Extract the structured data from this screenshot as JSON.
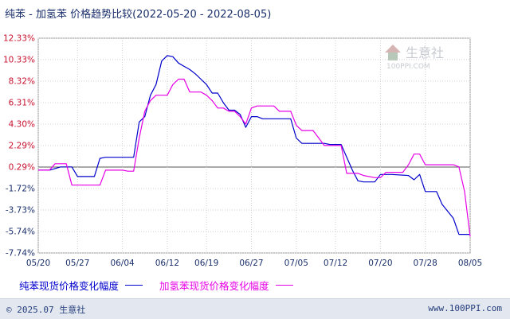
{
  "title": {
    "main": "纯苯 - 加氢苯 价格趋势比较",
    "range": "(2022-05-20 - 2022-08-05)"
  },
  "watermark": {
    "cn": "生意社",
    "en": "100PPI.COM"
  },
  "footer": {
    "copyright": "© 2025.07 生意社",
    "url": "www.100PPI.com"
  },
  "colors": {
    "series_0": "#0000cc",
    "series_1": "#e600e6",
    "axis_pos": "#c8102e",
    "axis_neg": "#1a2f6b",
    "grid": "#d0d0d0"
  },
  "chart_data": {
    "type": "line",
    "ylim": [
      -7.74,
      12.33
    ],
    "y_ticks": [
      "12.33%",
      "10.33%",
      "8.32%",
      "6.31%",
      "4.30%",
      "2.29%",
      "0.29%",
      "-1.72%",
      "-3.73%",
      "-5.74%",
      "-7.74%"
    ],
    "y_tick_values": [
      12.33,
      10.33,
      8.32,
      6.31,
      4.3,
      2.29,
      0.29,
      -1.72,
      -3.73,
      -5.74,
      -7.74
    ],
    "x_ticks": [
      "05/20",
      "05/27",
      "06/04",
      "06/12",
      "06/19",
      "06/27",
      "07/05",
      "07/12",
      "07/20",
      "07/28",
      "08/05"
    ],
    "grid": true,
    "series": [
      {
        "name": "纯苯现货价格变化幅度",
        "points": [
          [
            "05/20",
            0
          ],
          [
            "05/22",
            0
          ],
          [
            "05/24",
            0.3
          ],
          [
            "05/26",
            0.3
          ],
          [
            "05/27",
            -0.6
          ],
          [
            "05/30",
            -0.6
          ],
          [
            "05/31",
            1.1
          ],
          [
            "06/01",
            1.2
          ],
          [
            "06/04",
            1.2
          ],
          [
            "06/06",
            1.2
          ],
          [
            "06/07",
            4.5
          ],
          [
            "06/08",
            5.0
          ],
          [
            "06/09",
            7.0
          ],
          [
            "06/10",
            8.0
          ],
          [
            "06/11",
            10.2
          ],
          [
            "06/12",
            10.7
          ],
          [
            "06/13",
            10.6
          ],
          [
            "06/14",
            10.0
          ],
          [
            "06/15",
            9.7
          ],
          [
            "06/16",
            9.4
          ],
          [
            "06/17",
            9.0
          ],
          [
            "06/18",
            8.5
          ],
          [
            "06/19",
            8.0
          ],
          [
            "06/20",
            7.2
          ],
          [
            "06/21",
            7.2
          ],
          [
            "06/22",
            6.3
          ],
          [
            "06/23",
            5.6
          ],
          [
            "06/24",
            5.6
          ],
          [
            "06/25",
            5.2
          ],
          [
            "06/26",
            4.0
          ],
          [
            "06/27",
            5.0
          ],
          [
            "06/28",
            5.0
          ],
          [
            "06/29",
            4.8
          ],
          [
            "07/01",
            4.8
          ],
          [
            "07/03",
            4.8
          ],
          [
            "07/04",
            4.8
          ],
          [
            "07/05",
            3.0
          ],
          [
            "07/06",
            2.5
          ],
          [
            "07/08",
            2.5
          ],
          [
            "07/10",
            2.5
          ],
          [
            "07/11",
            2.4
          ],
          [
            "07/12",
            2.4
          ],
          [
            "07/13",
            2.4
          ],
          [
            "07/15",
            0
          ],
          [
            "07/16",
            -1.0
          ],
          [
            "07/17",
            -1.1
          ],
          [
            "07/19",
            -1.1
          ],
          [
            "07/20",
            -0.4
          ],
          [
            "07/22",
            -0.4
          ],
          [
            "07/25",
            -0.5
          ],
          [
            "07/26",
            -0.9
          ],
          [
            "07/27",
            -0.4
          ],
          [
            "07/28",
            -2.0
          ],
          [
            "07/30",
            -2.0
          ],
          [
            "07/31",
            -3.2
          ],
          [
            "08/02",
            -4.5
          ],
          [
            "08/03",
            -6.0
          ],
          [
            "08/04",
            -6.0
          ],
          [
            "08/05",
            -6.0
          ]
        ]
      },
      {
        "name": "加氢苯现货价格变化幅度",
        "points": [
          [
            "05/20",
            0
          ],
          [
            "05/22",
            0
          ],
          [
            "05/23",
            0.6
          ],
          [
            "05/25",
            0.6
          ],
          [
            "05/26",
            -1.4
          ],
          [
            "05/29",
            -1.4
          ],
          [
            "05/31",
            -1.4
          ],
          [
            "06/01",
            0
          ],
          [
            "06/04",
            0
          ],
          [
            "06/05",
            -0.1
          ],
          [
            "06/06",
            -0.1
          ],
          [
            "06/07",
            3.0
          ],
          [
            "06/08",
            5.5
          ],
          [
            "06/09",
            6.5
          ],
          [
            "06/10",
            7.0
          ],
          [
            "06/11",
            7.0
          ],
          [
            "06/12",
            7.0
          ],
          [
            "06/13",
            8.0
          ],
          [
            "06/14",
            8.5
          ],
          [
            "06/15",
            8.5
          ],
          [
            "06/16",
            7.3
          ],
          [
            "06/17",
            7.3
          ],
          [
            "06/18",
            7.3
          ],
          [
            "06/19",
            7.0
          ],
          [
            "06/20",
            6.5
          ],
          [
            "06/21",
            5.8
          ],
          [
            "06/22",
            5.8
          ],
          [
            "06/23",
            5.5
          ],
          [
            "06/24",
            5.5
          ],
          [
            "06/25",
            5.0
          ],
          [
            "06/26",
            4.3
          ],
          [
            "06/27",
            5.8
          ],
          [
            "06/28",
            6.0
          ],
          [
            "06/29",
            6.0
          ],
          [
            "07/01",
            6.0
          ],
          [
            "07/02",
            5.5
          ],
          [
            "07/04",
            5.5
          ],
          [
            "07/05",
            4.2
          ],
          [
            "07/06",
            3.7
          ],
          [
            "07/08",
            3.7
          ],
          [
            "07/10",
            2.3
          ],
          [
            "07/12",
            2.3
          ],
          [
            "07/13",
            2.3
          ],
          [
            "07/14",
            -0.3
          ],
          [
            "07/16",
            -0.3
          ],
          [
            "07/17",
            -0.5
          ],
          [
            "07/19",
            -0.7
          ],
          [
            "07/20",
            -0.7
          ],
          [
            "07/21",
            -0.2
          ],
          [
            "07/22",
            -0.2
          ],
          [
            "07/24",
            -0.2
          ],
          [
            "07/25",
            0.5
          ],
          [
            "07/26",
            1.5
          ],
          [
            "07/27",
            1.5
          ],
          [
            "07/28",
            0.5
          ],
          [
            "07/30",
            0.5
          ],
          [
            "08/01",
            0.5
          ],
          [
            "08/02",
            0.5
          ],
          [
            "08/03",
            0.3
          ],
          [
            "08/04",
            -2.0
          ],
          [
            "08/05",
            -6.2
          ]
        ]
      }
    ]
  }
}
